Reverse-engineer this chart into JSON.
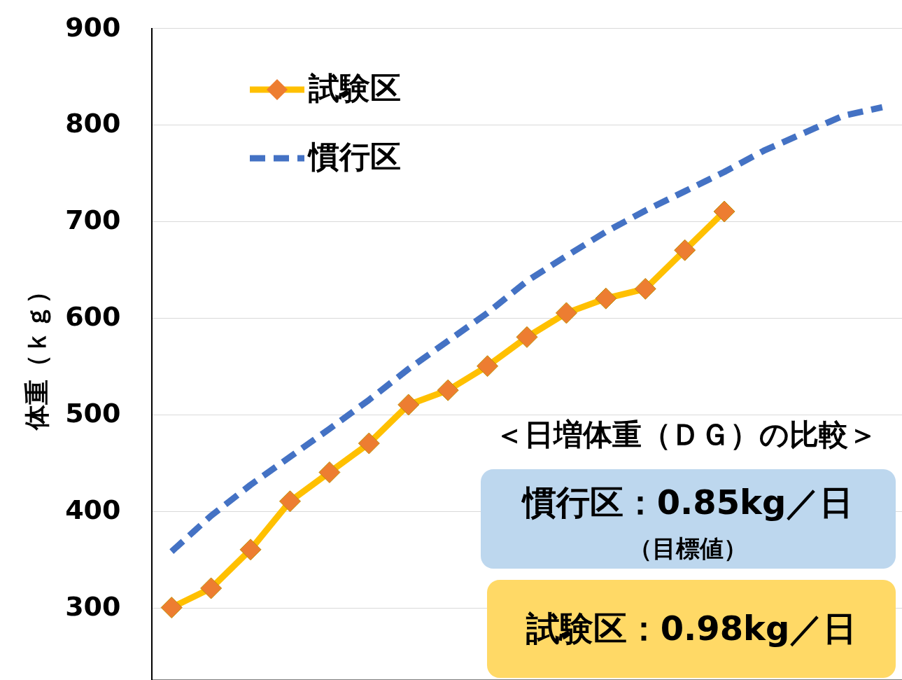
{
  "chart_data": {
    "type": "line",
    "ylabel": "体重（ｋｇ）",
    "categories": [
      null,
      null,
      null,
      null,
      null,
      null,
      null,
      null,
      null,
      null,
      null,
      null,
      null,
      null,
      null,
      null,
      null,
      null,
      null
    ],
    "series": [
      {
        "name": "試験区",
        "color": "#ffc000",
        "marker": "diamond",
        "line_style": "solid",
        "values": [
          300,
          320,
          360,
          410,
          440,
          470,
          510,
          525,
          550,
          580,
          605,
          620,
          630,
          670,
          710,
          null,
          null,
          null,
          null
        ]
      },
      {
        "name": "慣行区",
        "color": "#4472c4",
        "marker": "none",
        "line_style": "dashed",
        "values": [
          358,
          395,
          427,
          456,
          485,
          515,
          547,
          576,
          605,
          638,
          664,
          689,
          711,
          731,
          751,
          773,
          791,
          809,
          818
        ]
      }
    ],
    "ylim": [
      225,
      900
    ],
    "yticks": [
      300,
      400,
      500,
      600,
      700,
      800,
      900
    ],
    "grid": "y",
    "tick_labels": "y",
    "legend": "top left",
    "annotations": [
      "＜日増体重（ＤＧ）の比較＞",
      "慣行区：0.85kg／日",
      "（目標値）",
      "試験区：0.98kg／日"
    ]
  }
}
